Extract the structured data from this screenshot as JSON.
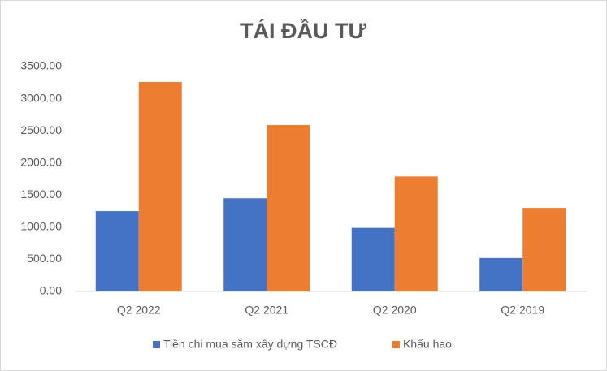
{
  "chart_data": {
    "type": "bar",
    "title": "TÁI ĐẦU TƯ",
    "categories": [
      "Q2 2022",
      "Q2 2021",
      "Q2 2020",
      "Q2 2019"
    ],
    "series": [
      {
        "name": "Tiền chi mua sắm xây dựng TSCĐ",
        "color": "#4472c4",
        "values": [
          1250,
          1450,
          990,
          520
        ]
      },
      {
        "name": "Khấu hao",
        "color": "#ed7d31",
        "values": [
          3260,
          2590,
          1790,
          1300
        ]
      }
    ],
    "ylim": [
      0,
      3500
    ],
    "yticks": [
      {
        "value": 0,
        "label": "0.00"
      },
      {
        "value": 500,
        "label": "500.00"
      },
      {
        "value": 1000,
        "label": "1000.00"
      },
      {
        "value": 1500,
        "label": "1500.00"
      },
      {
        "value": 2000,
        "label": "2000.00"
      },
      {
        "value": 2500,
        "label": "2500.00"
      },
      {
        "value": 3000,
        "label": "3000.00"
      },
      {
        "value": 3500,
        "label": "3500.00"
      }
    ],
    "grid": false,
    "legend": "bottom"
  }
}
